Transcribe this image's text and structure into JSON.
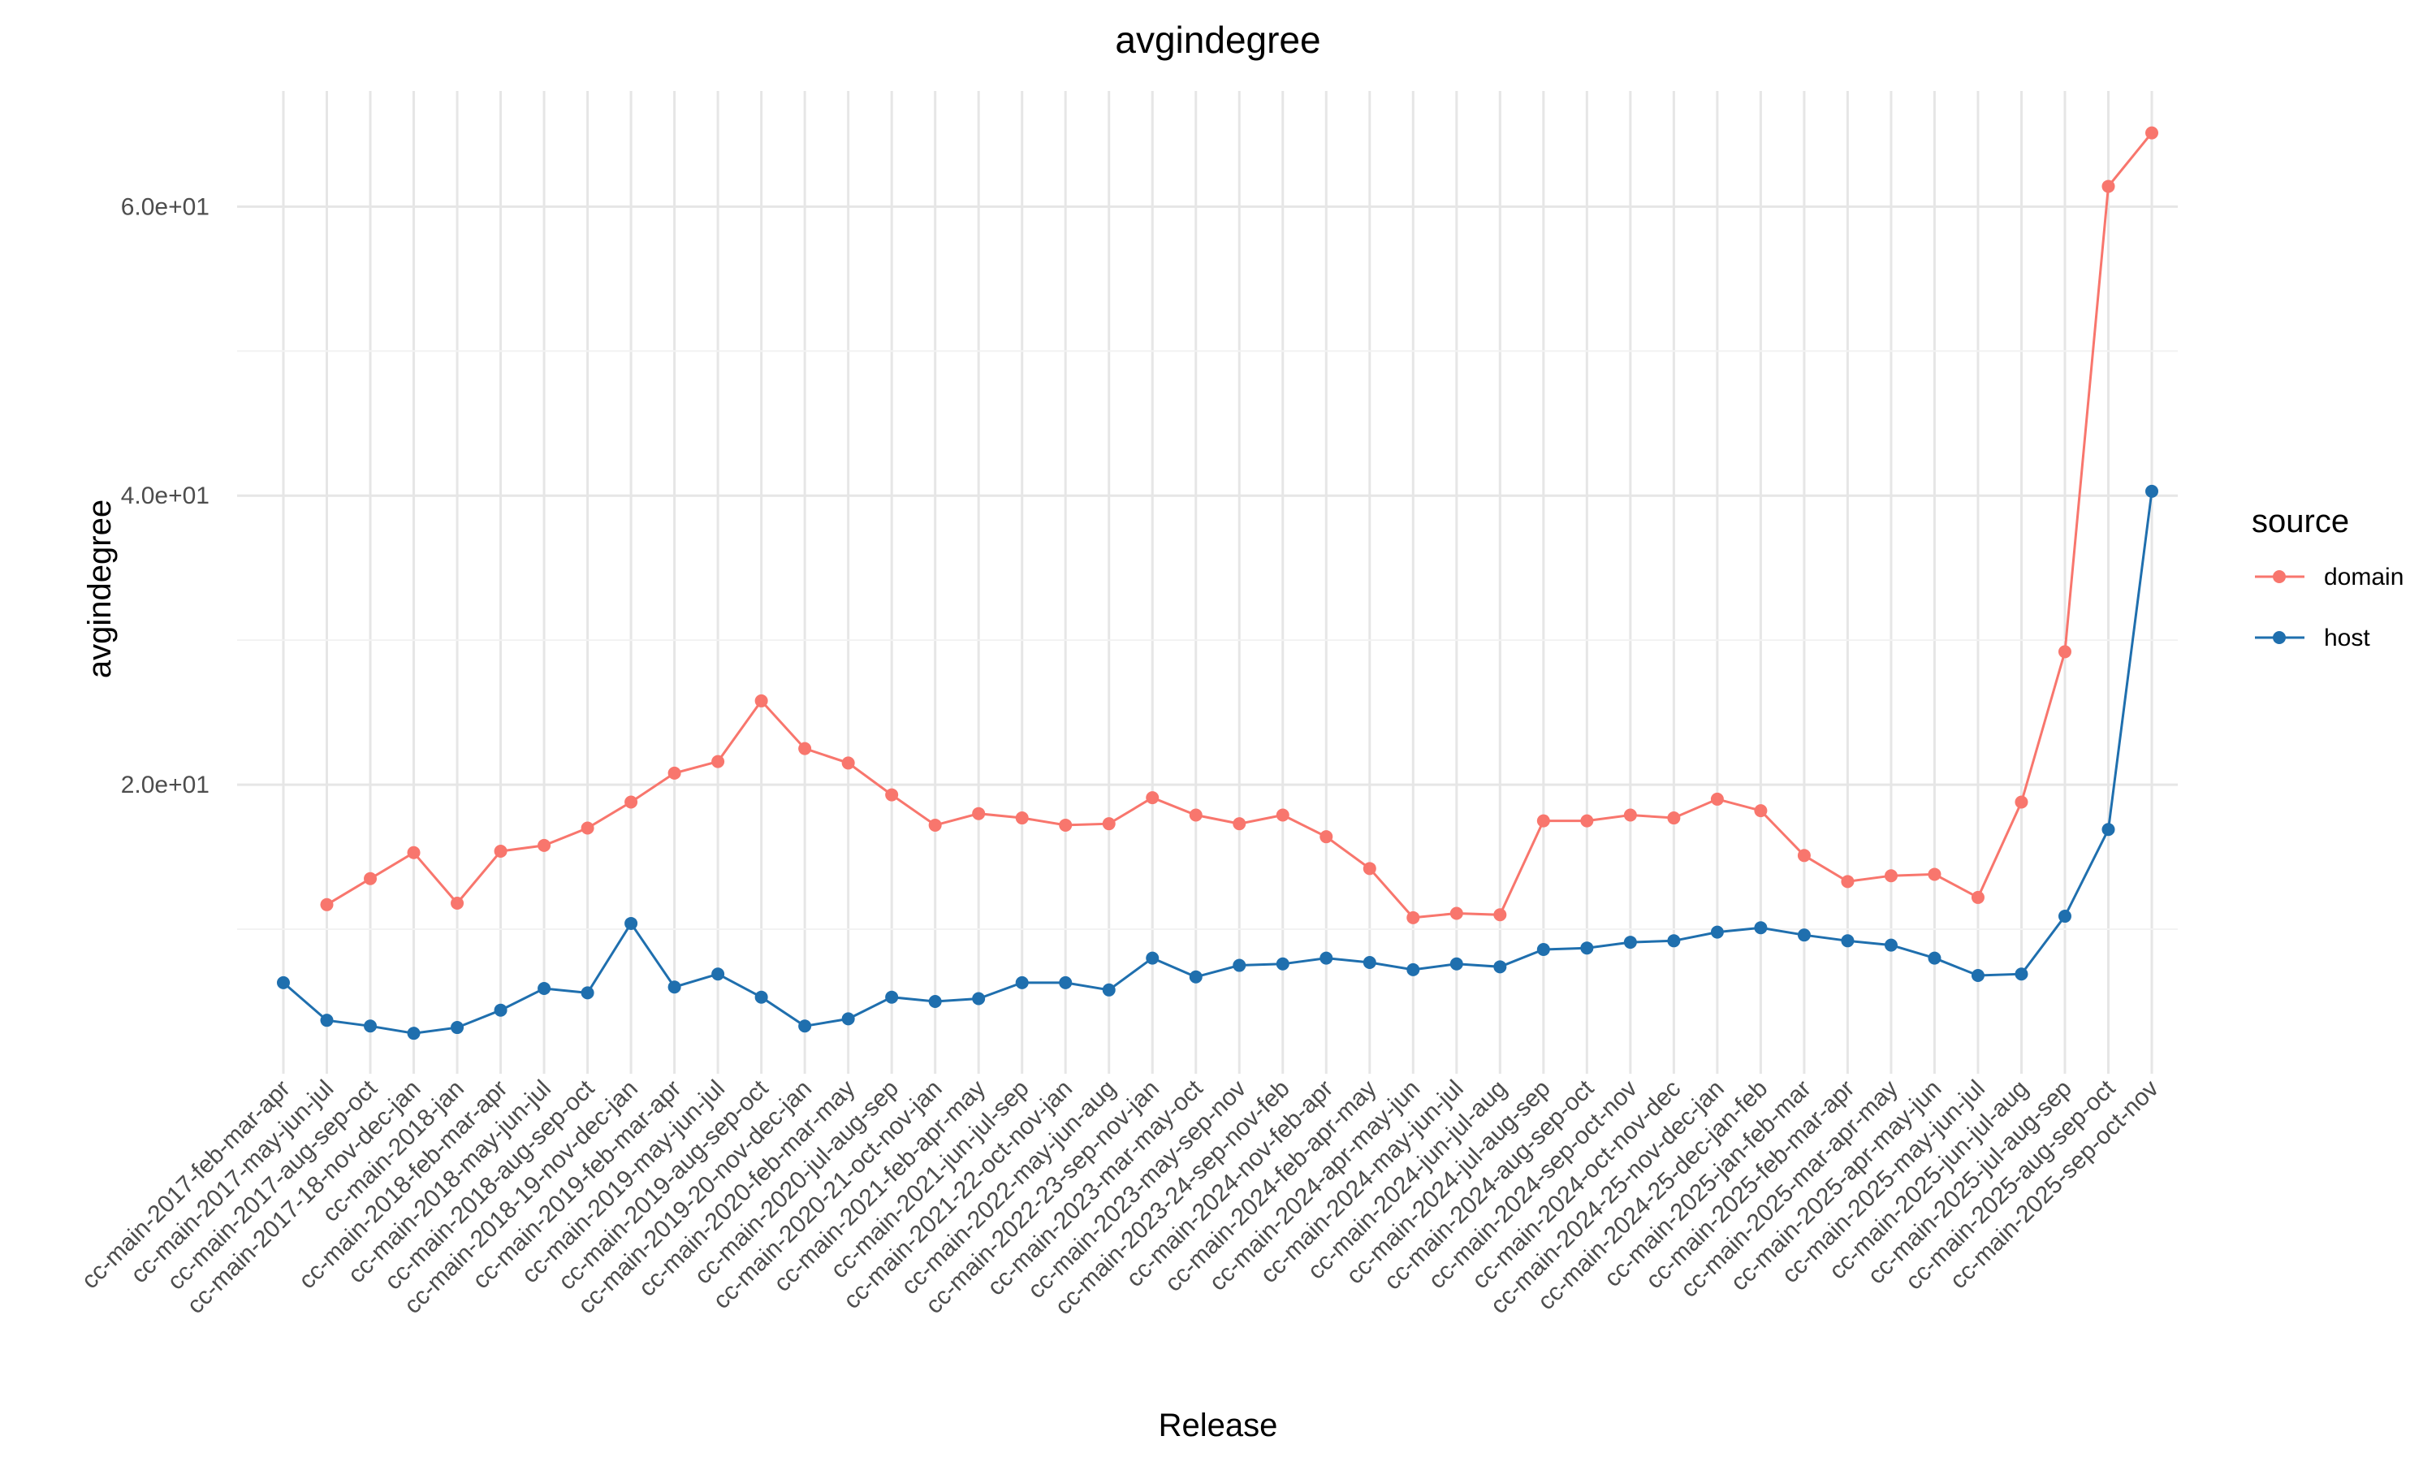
{
  "chart_data": {
    "type": "line",
    "title": "avgindegree",
    "xlabel": "Release",
    "ylabel": "avgindegree",
    "y_tick_labels": [
      "2.0e+01",
      "4.0e+01",
      "6.0e+01"
    ],
    "y_ticks": [
      20,
      40,
      60
    ],
    "ylim": [
      0,
      68
    ],
    "grid": true,
    "legend": {
      "title": "source",
      "position": "right"
    },
    "categories": [
      "cc-main-2017-feb-mar-apr",
      "cc-main-2017-may-jun-jul",
      "cc-main-2017-aug-sep-oct",
      "cc-main-2017-18-nov-dec-jan",
      "cc-main-2018-jan",
      "cc-main-2018-feb-mar-apr",
      "cc-main-2018-may-jun-jul",
      "cc-main-2018-aug-sep-oct",
      "cc-main-2018-19-nov-dec-jan",
      "cc-main-2019-feb-mar-apr",
      "cc-main-2019-may-jun-jul",
      "cc-main-2019-aug-sep-oct",
      "cc-main-2019-20-nov-dec-jan",
      "cc-main-2020-feb-mar-may",
      "cc-main-2020-jul-aug-sep",
      "cc-main-2020-21-oct-nov-jan",
      "cc-main-2021-feb-apr-may",
      "cc-main-2021-jun-jul-sep",
      "cc-main-2021-22-oct-nov-jan",
      "cc-main-2022-may-jun-aug",
      "cc-main-2022-23-sep-nov-jan",
      "cc-main-2023-mar-may-oct",
      "cc-main-2023-may-sep-nov",
      "cc-main-2023-24-sep-nov-feb",
      "cc-main-2024-nov-feb-apr",
      "cc-main-2024-feb-apr-may",
      "cc-main-2024-apr-may-jun",
      "cc-main-2024-may-jun-jul",
      "cc-main-2024-jun-jul-aug",
      "cc-main-2024-jul-aug-sep",
      "cc-main-2024-aug-sep-oct",
      "cc-main-2024-sep-oct-nov",
      "cc-main-2024-oct-nov-dec",
      "cc-main-2024-25-nov-dec-jan",
      "cc-main-2024-25-dec-jan-feb",
      "cc-main-2025-jan-feb-mar",
      "cc-main-2025-feb-mar-apr",
      "cc-main-2025-mar-apr-may",
      "cc-main-2025-apr-may-jun",
      "cc-main-2025-may-jun-jul",
      "cc-main-2025-jun-jul-aug",
      "cc-main-2025-jul-aug-sep",
      "cc-main-2025-aug-sep-oct",
      "cc-main-2025-sep-oct-nov"
    ],
    "series": [
      {
        "name": "domain",
        "color": "#F8766D",
        "values": [
          null,
          11.7,
          13.5,
          15.3,
          11.8,
          15.4,
          15.8,
          17.0,
          18.8,
          20.8,
          21.6,
          25.8,
          22.5,
          21.5,
          19.3,
          17.2,
          18.0,
          17.7,
          17.2,
          17.3,
          19.1,
          17.9,
          17.3,
          17.9,
          16.4,
          14.2,
          10.8,
          11.1,
          11.0,
          17.5,
          17.5,
          17.9,
          17.7,
          19.0,
          18.2,
          15.1,
          13.3,
          13.7,
          13.8,
          12.2,
          18.8,
          29.2,
          61.4,
          65.1
        ]
      },
      {
        "name": "host",
        "color": "#1F6FAE",
        "values": [
          6.3,
          3.7,
          3.3,
          2.8,
          3.2,
          4.4,
          5.9,
          5.6,
          10.4,
          6.0,
          6.9,
          5.3,
          3.3,
          3.8,
          5.3,
          5.0,
          5.2,
          6.3,
          6.3,
          5.8,
          8.0,
          6.7,
          7.5,
          7.6,
          8.0,
          7.7,
          7.2,
          7.6,
          7.4,
          8.6,
          8.7,
          9.1,
          9.2,
          9.8,
          10.1,
          9.6,
          9.2,
          8.9,
          8.0,
          6.8,
          6.9,
          10.9,
          16.9,
          40.3
        ]
      }
    ]
  }
}
